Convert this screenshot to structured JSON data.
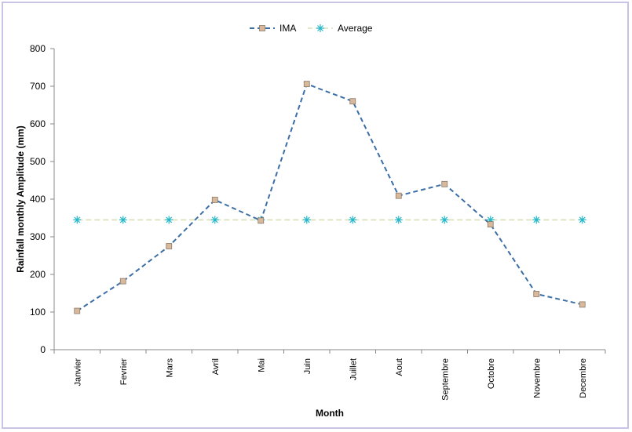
{
  "chart_data": {
    "type": "line",
    "categories": [
      "Janvier",
      "Fevrier",
      "Mars",
      "Avril",
      "Mai",
      "Juin",
      "Juillet",
      "Aout",
      "Septembre",
      "Octobre",
      "Novembre",
      "Decembre"
    ],
    "series": [
      {
        "name": "IMA",
        "values": [
          103,
          182,
          275,
          398,
          343,
          706,
          660,
          409,
          440,
          333,
          148,
          120
        ],
        "color": "#3b6ea5",
        "marker": "square",
        "marker_fill": "#d9b99b",
        "line_style": "dashed"
      },
      {
        "name": "Average",
        "values": [
          345,
          345,
          345,
          345,
          345,
          345,
          345,
          345,
          345,
          345,
          345,
          345
        ],
        "color": "#d8e0b8",
        "marker": "asterisk",
        "marker_color": "#24b8c8",
        "line_style": "dashed"
      }
    ],
    "xlabel": "Month",
    "ylabel": "Rainfall monthly Amplitude (mm)",
    "ylim": [
      0,
      800
    ],
    "yticks": [
      0,
      100,
      200,
      300,
      400,
      500,
      600,
      700,
      800
    ],
    "grid": false,
    "legend_position": "top"
  }
}
